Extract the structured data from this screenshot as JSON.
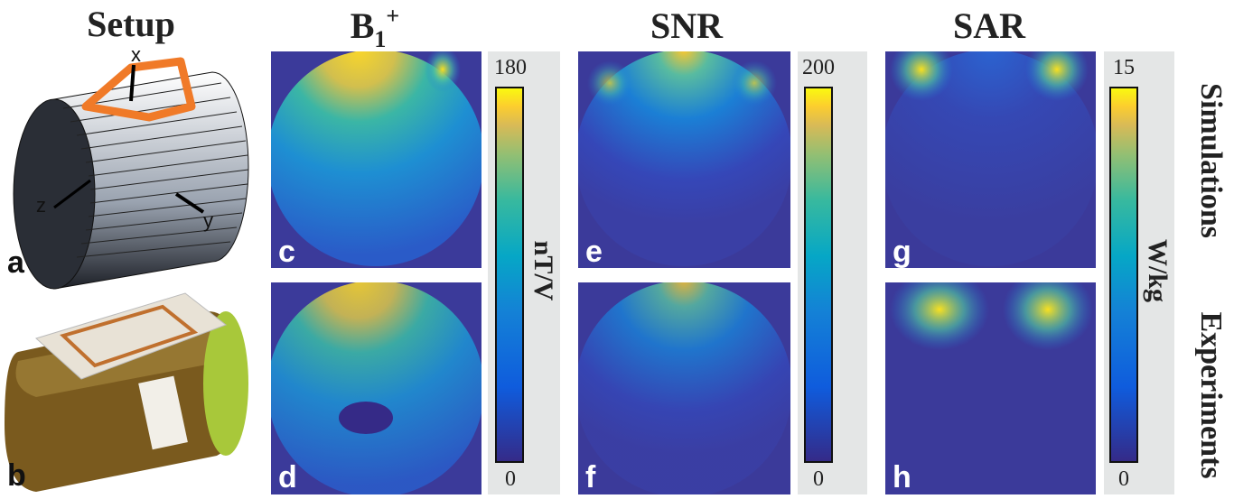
{
  "title_setup": "Setup",
  "title_b1": {
    "base": "B",
    "sub": "1",
    "sup": "+"
  },
  "title_snr": "SNR",
  "title_sar": "SAR",
  "axis_labels": {
    "x": "x",
    "y": "y",
    "z": "z"
  },
  "panel_letters": [
    "a",
    "b",
    "c",
    "d",
    "e",
    "f",
    "g",
    "h"
  ],
  "colorbars": [
    {
      "max": 180,
      "min": 0,
      "unit": "nT/V"
    },
    {
      "max": 200,
      "min": 0
    },
    {
      "max": 15,
      "min": 0,
      "unit": "W/kg"
    }
  ],
  "row_labels": [
    "Simulations",
    "Experiments"
  ]
}
